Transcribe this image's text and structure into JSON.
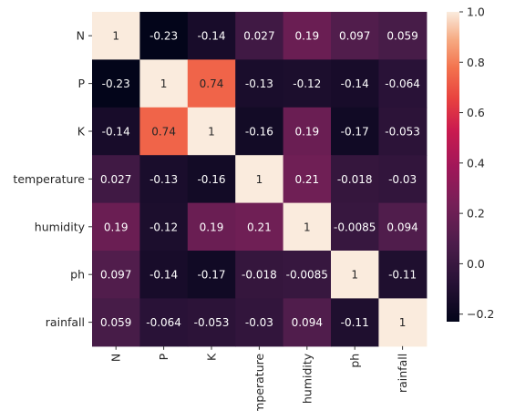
{
  "chart_data": {
    "type": "heatmap",
    "title": "",
    "xlabel": "",
    "ylabel": "",
    "x_categories": [
      "N",
      "P",
      "K",
      "temperature",
      "humidity",
      "ph",
      "rainfall"
    ],
    "y_categories": [
      "N",
      "P",
      "K",
      "temperature",
      "humidity",
      "ph",
      "rainfall"
    ],
    "values": [
      [
        1,
        -0.23,
        -0.14,
        0.027,
        0.19,
        0.097,
        0.059
      ],
      [
        -0.23,
        1,
        0.74,
        -0.13,
        -0.12,
        -0.14,
        -0.064
      ],
      [
        -0.14,
        0.74,
        1,
        -0.16,
        0.19,
        -0.17,
        -0.053
      ],
      [
        0.027,
        -0.13,
        -0.16,
        1,
        0.21,
        -0.018,
        -0.03
      ],
      [
        0.19,
        -0.12,
        0.19,
        0.21,
        1,
        -0.0085,
        0.094
      ],
      [
        0.097,
        -0.14,
        -0.17,
        -0.018,
        -0.0085,
        1,
        -0.11
      ],
      [
        0.059,
        -0.064,
        -0.053,
        -0.03,
        0.094,
        -0.11,
        1
      ]
    ],
    "value_labels": [
      [
        "1",
        "-0.23",
        "-0.14",
        "0.027",
        "0.19",
        "0.097",
        "0.059"
      ],
      [
        "-0.23",
        "1",
        "0.74",
        "-0.13",
        "-0.12",
        "-0.14",
        "-0.064"
      ],
      [
        "-0.14",
        "0.74",
        "1",
        "-0.16",
        "0.19",
        "-0.17",
        "-0.053"
      ],
      [
        "0.027",
        "-0.13",
        "-0.16",
        "1",
        "0.21",
        "-0.018",
        "-0.03"
      ],
      [
        "0.19",
        "-0.12",
        "0.19",
        "0.21",
        "1",
        "-0.0085",
        "0.094"
      ],
      [
        "0.097",
        "-0.14",
        "-0.17",
        "-0.018",
        "-0.0085",
        "1",
        "-0.11"
      ],
      [
        "0.059",
        "-0.064",
        "-0.053",
        "-0.03",
        "0.094",
        "-0.11",
        "1"
      ]
    ],
    "colorbar": {
      "min": -0.23,
      "max": 1.0,
      "ticks": [
        1.0,
        0.8,
        0.6,
        0.4,
        0.2,
        0.0,
        -0.2
      ],
      "tick_labels": [
        "1.0",
        "0.8",
        "0.6",
        "0.4",
        "0.2",
        "0.0",
        "−0.2"
      ],
      "colormap": "rocket"
    },
    "x_tick_rotation": "vertical",
    "grid": false,
    "legend": "colorbar-right"
  }
}
